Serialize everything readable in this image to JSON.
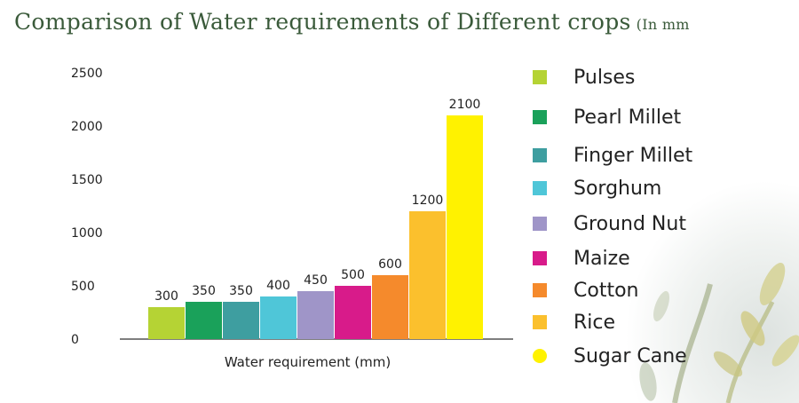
{
  "title": "Comparison of Water requirements of Different crops",
  "title_unit": "(In mm",
  "chart_data": {
    "type": "bar",
    "categories": [
      "Pulses",
      "Pearl Millet",
      "Finger Millet",
      "Sorghum",
      "Ground Nut",
      "Maize",
      "Cotton",
      "Rice",
      "Sugar Cane"
    ],
    "values": [
      300,
      350,
      350,
      400,
      450,
      500,
      600,
      1200,
      2100
    ],
    "data_labels": [
      "300",
      "350",
      "350",
      "400",
      "450",
      "500",
      "600",
      "1200",
      "2100"
    ],
    "colors": [
      "#b5d334",
      "#1aa15a",
      "#3e9ea0",
      "#4fc6d8",
      "#9f95c8",
      "#d81b8a",
      "#f58a2c",
      "#fbc02d",
      "#fff200"
    ],
    "xlabel": "Water requirement (mm)",
    "ylabel": "",
    "ylim": [
      0,
      2500
    ],
    "y_ticks": [
      0,
      500,
      1000,
      1500,
      2000,
      2500
    ],
    "y_tick_labels": [
      "0",
      "500",
      "1000",
      "1500",
      "2000",
      "2500"
    ],
    "grid": false,
    "legend_position": "right"
  }
}
